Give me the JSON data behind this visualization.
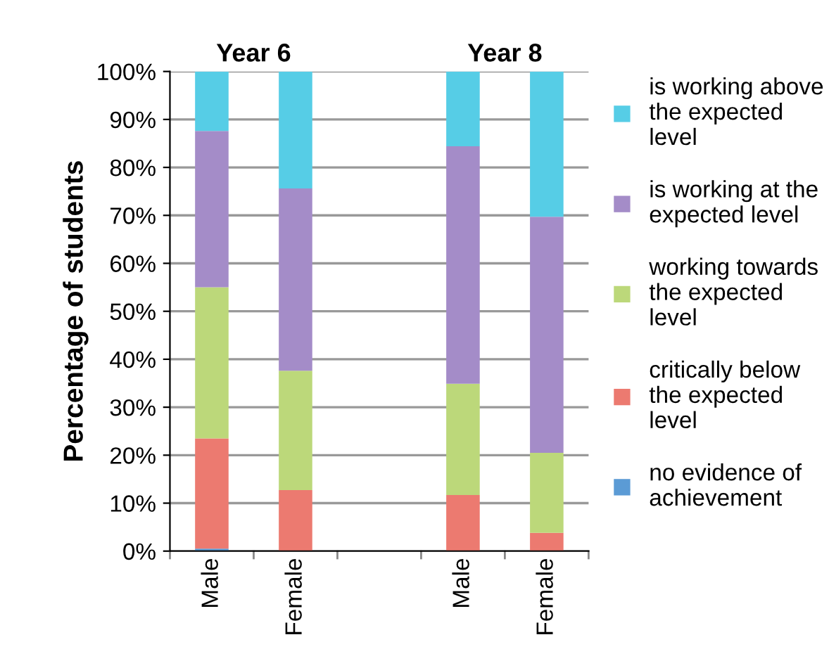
{
  "chart_data": {
    "type": "bar",
    "stacked": true,
    "ylabel": "Percentage of students",
    "categories": [
      "Male",
      "Female",
      null,
      "Male",
      "Female"
    ],
    "series": [
      {
        "name": "no evidence of achievement",
        "color": "#5b9bd5",
        "values": [
          0.5,
          0,
          null,
          0,
          0
        ]
      },
      {
        "name": "critically below the expected level",
        "color": "#ec7a70",
        "values": [
          23.0,
          12.7,
          null,
          11.7,
          3.8
        ]
      },
      {
        "name": "working towards the expected level",
        "color": "#bcd87a",
        "values": [
          31.5,
          24.9,
          null,
          23.2,
          16.7
        ]
      },
      {
        "name": "is working at the expected level",
        "color": "#a48cc8",
        "values": [
          32.6,
          38.0,
          null,
          49.5,
          49.2
        ]
      },
      {
        "name": "is working above the expected level",
        "color": "#56cde6",
        "values": [
          12.4,
          24.4,
          null,
          15.6,
          30.3
        ]
      }
    ],
    "annotations": [
      "Year 6",
      "Year 8"
    ],
    "ylim": [
      0,
      100
    ],
    "yticks": [
      {
        "value": 0,
        "label": "0%"
      },
      {
        "value": 10,
        "label": "10%"
      },
      {
        "value": 20,
        "label": "20%"
      },
      {
        "value": 30,
        "label": "30%"
      },
      {
        "value": 40,
        "label": "40%"
      },
      {
        "value": 50,
        "label": "50%"
      },
      {
        "value": 60,
        "label": "60%"
      },
      {
        "value": 70,
        "label": "70%"
      },
      {
        "value": 80,
        "label": "80%"
      },
      {
        "value": 90,
        "label": "90%"
      },
      {
        "value": 100,
        "label": "100%"
      }
    ],
    "grid": "y",
    "legend": "right"
  }
}
